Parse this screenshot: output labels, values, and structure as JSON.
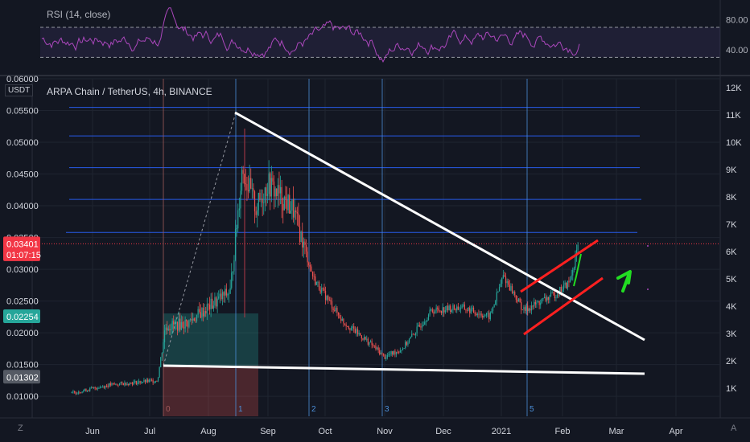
{
  "rsi": {
    "label": "RSI (14, close)",
    "upper": 70,
    "lower": 30,
    "ticks": [
      {
        "value": 80,
        "label": "80.00"
      },
      {
        "value": 40,
        "label": "40.00"
      }
    ],
    "range": [
      10,
      100
    ]
  },
  "main": {
    "currency": "USDT",
    "title": "ARPA Chain / TetherUS, 4h, BINANCE",
    "price_ticks": [
      "0.06000",
      "0.05500",
      "0.05000",
      "0.04500",
      "0.04000",
      "0.03500",
      "0.03000",
      "0.02500",
      "0.02000",
      "0.01500",
      "0.01000"
    ],
    "right_ticks": [
      "12K",
      "11K",
      "10K",
      "9K",
      "8K",
      "7K",
      "6K",
      "5K",
      "4K",
      "3K",
      "2K",
      "1K"
    ],
    "price_badges": [
      {
        "text": "0.03401",
        "price": 0.03401,
        "color": "#f23645"
      },
      {
        "text": "01:07:15",
        "price": 0.0323,
        "color": "#f23645"
      },
      {
        "text": "0.02254",
        "price": 0.02254,
        "color": "#26a69a"
      },
      {
        "text": "0.01302",
        "price": 0.01302,
        "color": "#555a64"
      }
    ],
    "x_labels": [
      "Jun",
      "Jul",
      "Aug",
      "Sep",
      "Oct",
      "Nov",
      "Dec",
      "2021",
      "Feb",
      "Mar",
      "Apr"
    ],
    "cycle_labels": [
      "0",
      "1",
      "2",
      "3",
      "5"
    ],
    "cycle_colors": [
      "#a05a5a",
      "#4b8fd8",
      "#4b8fd8",
      "#4b8fd8",
      "#4b8fd8"
    ],
    "fib_levels": [
      0.0555,
      0.051,
      0.046,
      0.041,
      0.0358
    ],
    "current_price": 0.03401
  },
  "chart_data": {
    "type": "candlestick",
    "symbol": "ARPA Chain / TetherUS",
    "interval": "4h",
    "exchange": "BINANCE",
    "y_unit": "USDT",
    "ylim": [
      0.0085,
      0.06
    ],
    "x_months": [
      "Jun",
      "Jul",
      "Aug",
      "Sep",
      "Oct",
      "Nov",
      "Dec",
      "2021",
      "Feb",
      "Mar",
      "Apr"
    ],
    "price_path": [
      [
        "May 20",
        0.0105
      ],
      [
        "Jun 10",
        0.0118
      ],
      [
        "Jul 5",
        0.0125
      ],
      [
        "Jul 9",
        0.021
      ],
      [
        "Jul 20",
        0.0215
      ],
      [
        "Aug 3",
        0.0245
      ],
      [
        "Aug 12",
        0.0265
      ],
      [
        "Aug 18",
        0.046
      ],
      [
        "Aug 25",
        0.0395
      ],
      [
        "Sep 1",
        0.0435
      ],
      [
        "Sep 14",
        0.0395
      ],
      [
        "Sep 25",
        0.0285
      ],
      [
        "Oct 10",
        0.0218
      ],
      [
        "Oct 25",
        0.018
      ],
      [
        "Nov 1",
        0.0162
      ],
      [
        "Nov 10",
        0.0175
      ],
      [
        "Nov 25",
        0.0235
      ],
      [
        "Dec 10",
        0.024
      ],
      [
        "Dec 25",
        0.0225
      ],
      [
        "Jan 2",
        0.029
      ],
      [
        "Jan 12",
        0.0235
      ],
      [
        "Jan 28",
        0.0262
      ],
      [
        "Feb 5",
        0.028
      ],
      [
        "Feb 10",
        0.034
      ]
    ],
    "trendlines": [
      "upper descending",
      "lower support",
      "ascending channel top",
      "ascending channel bottom"
    ]
  },
  "colors": {
    "bg": "#131722",
    "grid": "#1f2430",
    "up": "#26a69a",
    "down": "#ef5350",
    "rsi_line": "#ab47bc",
    "fib": "#2962ff",
    "white": "#ffffff",
    "channel": "#ff2020",
    "arrow": "#22dd22"
  }
}
